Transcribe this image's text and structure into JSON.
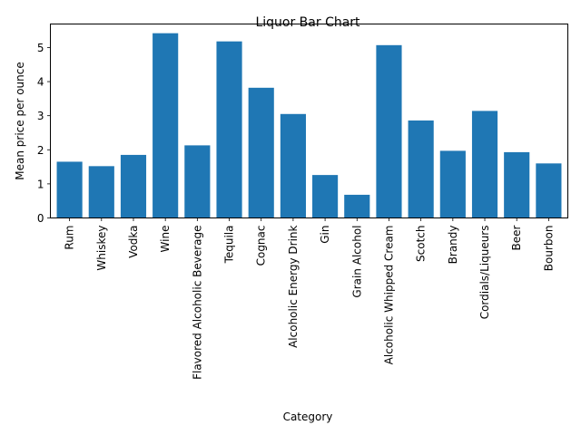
{
  "chart_data": {
    "type": "bar",
    "title": "Liquor Bar Chart",
    "xlabel": "Category",
    "ylabel": "Mean price per ounce",
    "categories": [
      "Rum",
      "Whiskey",
      "Vodka",
      "Wine",
      "Flavored Alcoholic Beverage",
      "Tequila",
      "Cognac",
      "Alcoholic Energy Drink",
      "Gin",
      "Grain Alcohol",
      "Alcoholic Whipped Cream",
      "Scotch",
      "Brandy",
      "Cordials/Liqueurs",
      "Beer",
      "Bourbon"
    ],
    "values": [
      1.65,
      1.52,
      1.85,
      5.42,
      2.13,
      5.18,
      3.82,
      3.05,
      1.26,
      0.68,
      5.07,
      2.86,
      1.97,
      3.14,
      1.93,
      1.6
    ],
    "ylim": [
      0,
      5.69
    ],
    "yticks": [
      0,
      1,
      2,
      3,
      4,
      5
    ],
    "bar_color": "#1f77b4",
    "grid": false,
    "legend": "none"
  }
}
